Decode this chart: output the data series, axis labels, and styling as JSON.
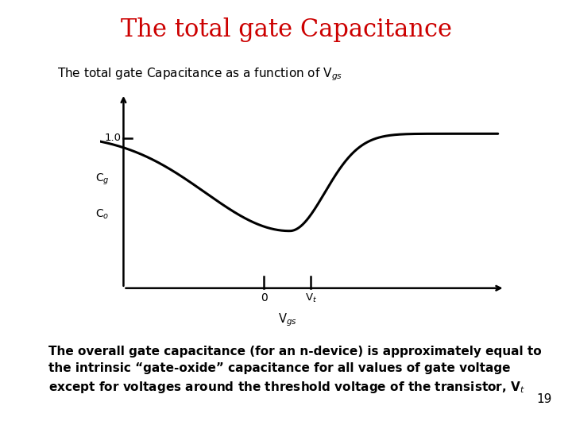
{
  "title": "The total gate Capacitance",
  "title_color": "#cc0000",
  "title_fontsize": 22,
  "subtitle": "The total gate Capacitance as a function of V$_{gs}$",
  "subtitle_fontsize": 11,
  "ylabel_line1": "C$_g$",
  "ylabel_line2": "C$_o$",
  "xlabel": "V$_{gs}$",
  "background_color": "#ffffff",
  "body_text_line1": "The overall gate capacitance (for an n-device) is approximately equal to",
  "body_text_line2": "the intrinsic “gate-oxide” capacitance for all values of gate voltage",
  "body_text_line3": "except for voltages around the threshold voltage of the transistor, V$_t$",
  "body_text_fontsize": 11,
  "page_number": "19",
  "tick_label_10": "1.0",
  "x_tick_0": "0",
  "x_tick_vt": "V$_t$",
  "curve_color": "#000000",
  "axis_color": "#000000",
  "line_width": 2.2,
  "axis_lw": 1.8
}
